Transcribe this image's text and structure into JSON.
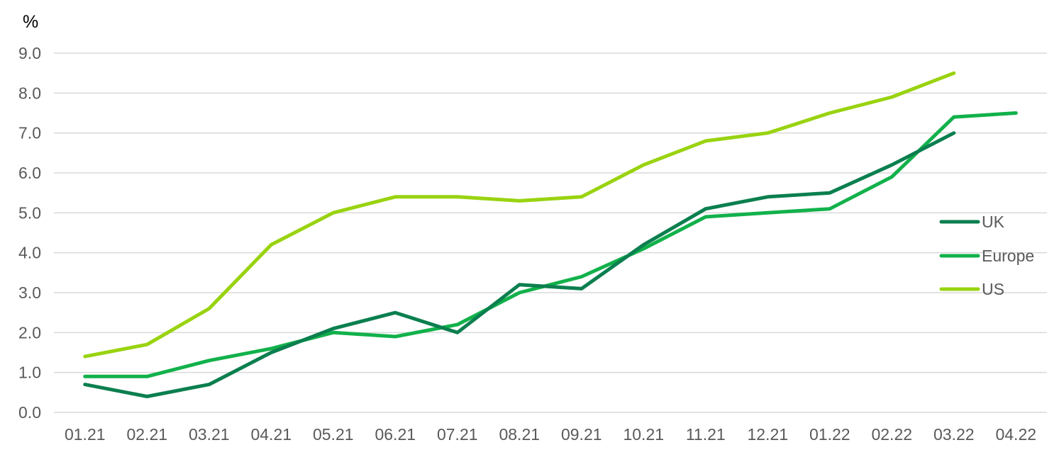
{
  "chart_data": {
    "type": "line",
    "title": "",
    "xlabel": "",
    "ylabel": "%",
    "categories": [
      "01.21",
      "02.21",
      "03.21",
      "04.21",
      "05.21",
      "06.21",
      "07.21",
      "08.21",
      "09.21",
      "10.21",
      "11.21",
      "12.21",
      "01.22",
      "02.22",
      "03.22",
      "04.22"
    ],
    "ylim": [
      0,
      9
    ],
    "yticks": [
      "0.0",
      "1.0",
      "2.0",
      "3.0",
      "4.0",
      "5.0",
      "6.0",
      "7.0",
      "8.0",
      "9.0"
    ],
    "grid": true,
    "legend_position": "right",
    "series": [
      {
        "name": "UK",
        "color": "#0b7f4f",
        "values": [
          0.7,
          0.4,
          0.7,
          1.5,
          2.1,
          2.5,
          2.0,
          3.2,
          3.1,
          4.2,
          5.1,
          5.4,
          5.5,
          6.2,
          7.0,
          null
        ]
      },
      {
        "name": "Europe",
        "color": "#12b14b",
        "values": [
          0.9,
          0.9,
          1.3,
          1.6,
          2.0,
          1.9,
          2.2,
          3.0,
          3.4,
          4.1,
          4.9,
          5.0,
          5.1,
          5.9,
          7.4,
          7.5
        ]
      },
      {
        "name": "US",
        "color": "#99d310",
        "values": [
          1.4,
          1.7,
          2.6,
          4.2,
          5.0,
          5.4,
          5.4,
          5.3,
          5.4,
          6.2,
          6.8,
          7.0,
          7.5,
          7.9,
          8.5,
          null
        ]
      }
    ]
  }
}
